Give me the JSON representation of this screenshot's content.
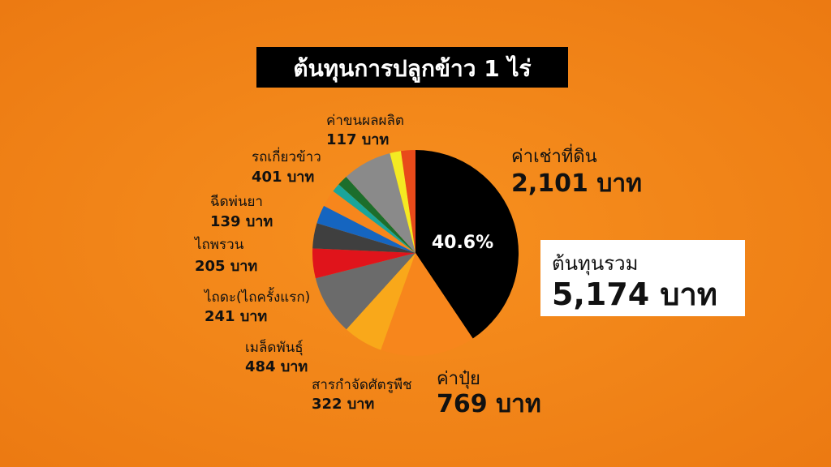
{
  "chart_data": {
    "type": "pie",
    "title": "ต้นทุนการปลูกข้าว 1 ไร่",
    "categories": [
      "ค่าเช่าที่ดิน",
      "ค่าปุ๋ย",
      "สารกำจัดศัตรูพืช",
      "เมล็ดพันธุ์",
      "ไถดะ(ไถครั้งแรก)",
      "ไถพรวน",
      null,
      "ฉีดพ่นยา",
      null,
      null,
      "รถเกี่ยวข้าว",
      null,
      "ค่าขนผลผลิต"
    ],
    "values": [
      2101,
      769,
      322,
      484,
      241,
      205,
      150,
      139,
      70,
      85,
      401,
      90,
      117
    ],
    "value_labels": [
      "2,101 บาท",
      "769 บาท",
      "322 บาท",
      "484 บาท",
      "241 บาท",
      "205 บาท",
      null,
      "139 บาท",
      null,
      null,
      "401 บาท",
      null,
      "117 บาท"
    ],
    "colors": [
      "#000000",
      "#f7861c",
      "#f9a81a",
      "#6b6b6b",
      "#e0141b",
      "#3f3f3f",
      "#1565c0",
      "#f7861c",
      "#1aa59a",
      "#1c6e2c",
      "#8a8a8a",
      "#f4ea22",
      "#e84a1a"
    ],
    "annotation": "40.6%",
    "total_label": "ต้นทุนรวม",
    "total": "5,174 บาท"
  }
}
